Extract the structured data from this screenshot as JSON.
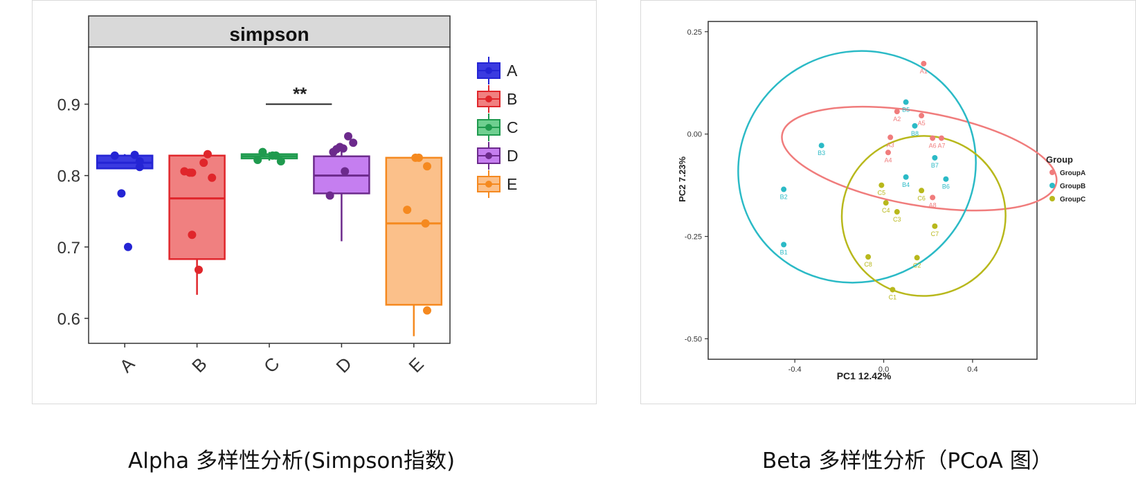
{
  "captions": {
    "alpha": "Alpha 多样性分析(Simpson指数)",
    "beta": "Beta 多样性分析（PCoA 图）"
  },
  "chart_data": [
    {
      "type": "box",
      "title": "simpson",
      "xlabel": "",
      "ylabel": "",
      "categories": [
        "A",
        "B",
        "C",
        "D",
        "E"
      ],
      "yticks": [
        0.6,
        0.7,
        0.8,
        0.9
      ],
      "ylim": [
        0.565,
        0.98
      ],
      "grid": false,
      "legend_position": "right",
      "significance": {
        "from": "C",
        "to": "D",
        "label": "**",
        "y": 0.9
      },
      "boxes": [
        {
          "name": "A",
          "color": "#2424d4",
          "fill": "#3a3ae0",
          "q1": 0.81,
          "median": 0.818,
          "q3": 0.828,
          "whisker_low": 0.81,
          "whisker_high": 0.83,
          "points": [
            [
              -0.3,
              0.828
            ],
            [
              0.3,
              0.829
            ],
            [
              0.45,
              0.812
            ],
            [
              0.45,
              0.82
            ],
            [
              -0.1,
              0.775
            ],
            [
              0.1,
              0.7
            ]
          ]
        },
        {
          "name": "B",
          "color": "#e0262b",
          "fill": "#f08080",
          "q1": 0.683,
          "median": 0.768,
          "q3": 0.828,
          "whisker_low": 0.633,
          "whisker_high": 0.828,
          "points": [
            [
              -0.38,
              0.806
            ],
            [
              -0.22,
              0.804
            ],
            [
              -0.15,
              0.804
            ],
            [
              0.2,
              0.818
            ],
            [
              0.32,
              0.83
            ],
            [
              0.45,
              0.797
            ],
            [
              -0.15,
              0.717
            ],
            [
              0.05,
              0.668
            ]
          ]
        },
        {
          "name": "C",
          "color": "#1f9a4e",
          "fill": "#6fcf90",
          "q1": 0.824,
          "median": 0.827,
          "q3": 0.83,
          "whisker_low": 0.821,
          "whisker_high": 0.833,
          "points": [
            [
              -0.35,
              0.822
            ],
            [
              -0.2,
              0.833
            ],
            [
              0.1,
              0.828
            ],
            [
              0.2,
              0.828
            ],
            [
              0.35,
              0.82
            ]
          ]
        },
        {
          "name": "D",
          "color": "#6c2a8c",
          "fill": "#c57ef0",
          "q1": 0.775,
          "median": 0.8,
          "q3": 0.827,
          "whisker_low": 0.708,
          "whisker_high": 0.84,
          "points": [
            [
              -0.35,
              0.772
            ],
            [
              -0.25,
              0.833
            ],
            [
              -0.15,
              0.837
            ],
            [
              -0.05,
              0.84
            ],
            [
              0.05,
              0.838
            ],
            [
              0.1,
              0.806
            ],
            [
              0.2,
              0.855
            ],
            [
              0.35,
              0.846
            ]
          ]
        },
        {
          "name": "E",
          "color": "#f5891f",
          "fill": "#fbc08a",
          "q1": 0.619,
          "median": 0.733,
          "q3": 0.825,
          "whisker_low": 0.575,
          "whisker_high": 0.825,
          "points": [
            [
              -0.2,
              0.752
            ],
            [
              0.05,
              0.825
            ],
            [
              0.15,
              0.825
            ],
            [
              0.4,
              0.813
            ],
            [
              0.35,
              0.733
            ],
            [
              0.4,
              0.611
            ]
          ]
        }
      ]
    },
    {
      "type": "scatter",
      "title": "",
      "xlabel": "PC1 12.42%",
      "ylabel": "PC2 7.23%",
      "xticks": [
        -0.4,
        0.0,
        0.4
      ],
      "xticklabels": [
        "-0.4",
        "0.0",
        "0.4"
      ],
      "yticks": [
        -0.5,
        -0.25,
        0.0,
        0.25
      ],
      "yticklabels": [
        "-0.50",
        "-0.25",
        "0.00",
        "0.25"
      ],
      "xlim": [
        -0.79,
        0.69
      ],
      "ylim": [
        -0.55,
        0.275
      ],
      "grid": false,
      "legend_title": "Group",
      "legend_position": "right",
      "series": [
        {
          "name": "GroupA",
          "color": "#f07c7c",
          "points": [
            {
              "label": "A1",
              "x": 0.18,
              "y": 0.172
            },
            {
              "label": "A2",
              "x": 0.06,
              "y": 0.055
            },
            {
              "label": "A5",
              "x": 0.17,
              "y": 0.045
            },
            {
              "label": "A6",
              "x": 0.22,
              "y": -0.01
            },
            {
              "label": "A7",
              "x": 0.26,
              "y": -0.01
            },
            {
              "label": "A3",
              "x": 0.03,
              "y": -0.008
            },
            {
              "label": "A4",
              "x": 0.02,
              "y": -0.045
            },
            {
              "label": "A8",
              "x": 0.22,
              "y": -0.155
            }
          ],
          "ellipse": {
            "cx": 0.16,
            "cy": -0.06,
            "rx": 0.21,
            "ry": 0.34,
            "angle": 80
          }
        },
        {
          "name": "GroupB",
          "color": "#2bbac6",
          "points": [
            {
              "label": "B5",
              "x": 0.1,
              "y": 0.078
            },
            {
              "label": "B8",
              "x": 0.14,
              "y": 0.02
            },
            {
              "label": "B3",
              "x": -0.28,
              "y": -0.028
            },
            {
              "label": "B7",
              "x": 0.23,
              "y": -0.058
            },
            {
              "label": "B4",
              "x": 0.1,
              "y": -0.105
            },
            {
              "label": "B6",
              "x": 0.28,
              "y": -0.11
            },
            {
              "label": "B2",
              "x": -0.45,
              "y": -0.135
            },
            {
              "label": "B1",
              "x": -0.45,
              "y": -0.27
            }
          ],
          "ellipse": {
            "cx": -0.12,
            "cy": -0.08,
            "rx": 0.54,
            "ry": 0.28,
            "angle": 28
          }
        },
        {
          "name": "GroupC",
          "color": "#b8b81c",
          "points": [
            {
              "label": "C5",
              "x": -0.01,
              "y": -0.125
            },
            {
              "label": "C6",
              "x": 0.17,
              "y": -0.138
            },
            {
              "label": "C4",
              "x": 0.01,
              "y": -0.168
            },
            {
              "label": "C3",
              "x": 0.06,
              "y": -0.19
            },
            {
              "label": "C7",
              "x": 0.23,
              "y": -0.225
            },
            {
              "label": "C8",
              "x": -0.07,
              "y": -0.3
            },
            {
              "label": "C2",
              "x": 0.15,
              "y": -0.302
            },
            {
              "label": "C1",
              "x": 0.04,
              "y": -0.38
            }
          ],
          "ellipse": {
            "cx": 0.18,
            "cy": -0.2,
            "rx": 0.36,
            "ry": 0.2,
            "angle": -86
          }
        }
      ]
    }
  ]
}
